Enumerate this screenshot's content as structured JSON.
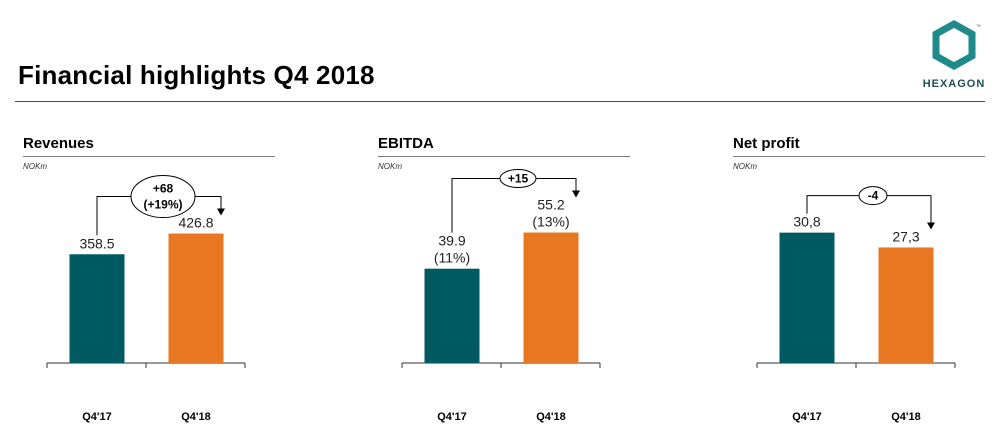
{
  "page": {
    "title": "Financial highlights Q4 2018"
  },
  "logo": {
    "text": "HEXAGON"
  },
  "colors": {
    "q4_17": "#005a62",
    "q4_18": "#e87722",
    "rule": "#7a7a7a"
  },
  "chart_data": [
    {
      "type": "bar",
      "title": "Revenues",
      "unit": "NOKm",
      "categories": [
        "Q4'17",
        "Q4'18"
      ],
      "values": [
        358.5,
        426.8
      ],
      "value_labels": [
        [
          "358.5"
        ],
        [
          "426.8"
        ]
      ],
      "delta": [
        "+68",
        "(+19%)"
      ],
      "ylim": [
        0,
        600
      ]
    },
    {
      "type": "bar",
      "title": "EBITDA",
      "unit": "NOKm",
      "categories": [
        "Q4'17",
        "Q4'18"
      ],
      "values": [
        39.9,
        55.2
      ],
      "value_labels": [
        [
          "39.9",
          "(11%)"
        ],
        [
          "55.2",
          "(13%)"
        ]
      ],
      "delta": [
        "+15"
      ],
      "ylim": [
        0,
        77
      ]
    },
    {
      "type": "bar",
      "title": "Net profit",
      "unit": "NOKm",
      "categories": [
        "Q4'17",
        "Q4'18"
      ],
      "values": [
        30.8,
        27.3
      ],
      "value_labels": [
        [
          "30,8"
        ],
        [
          "27,3"
        ]
      ],
      "delta": [
        "-4"
      ],
      "ylim": [
        0,
        43
      ]
    }
  ]
}
